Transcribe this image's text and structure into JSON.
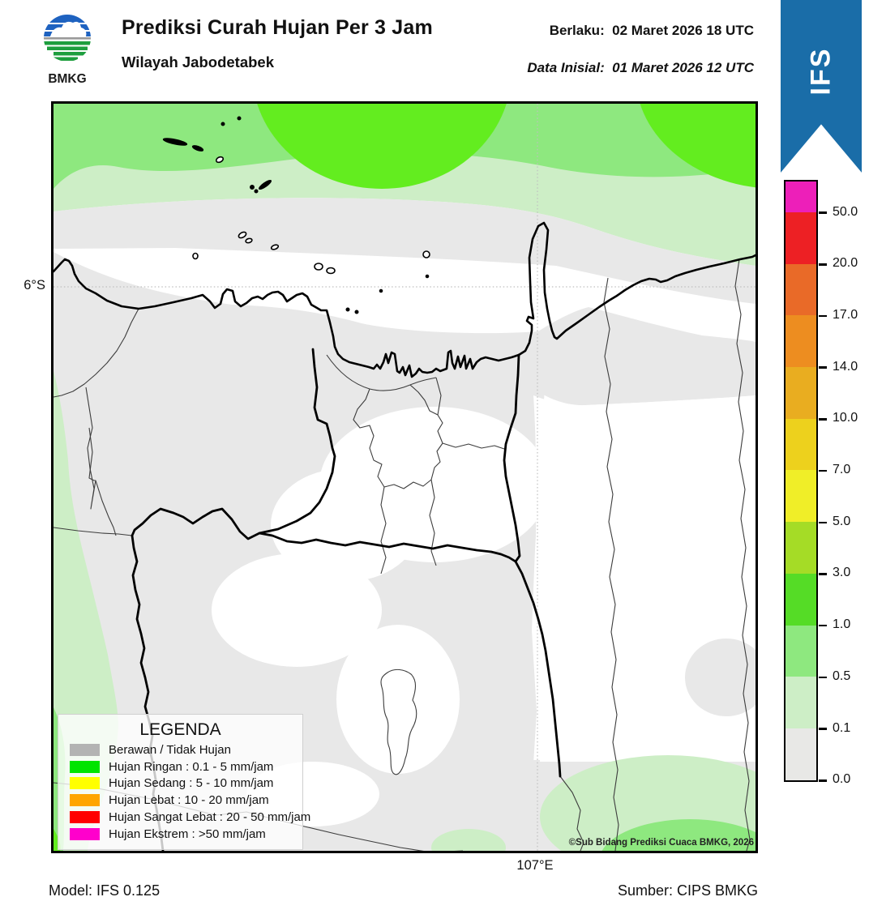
{
  "header": {
    "logo_text": "BMKG",
    "title": "Prediksi Curah Hujan Per 3 Jam",
    "subtitle": "Wilayah Jabodetabek",
    "valid_line": "Berlaku:  02 Maret 2026 18 UTC",
    "init_line": "Data Inisial:  01 Maret 2026 12 UTC"
  },
  "ribbon": {
    "label": "IFS",
    "color": "#1a6da8"
  },
  "colorbar": {
    "unit_implied": "mm/jam",
    "tick_labels": [
      "50.0",
      "20.0",
      "17.0",
      "14.0",
      "10.0",
      "7.0",
      "5.0",
      "3.0",
      "1.0",
      "0.5",
      "0.1",
      "0.0"
    ],
    "segment_colors_top_to_bottom": [
      "#ed1fb9",
      "#ed2024",
      "#e96a28",
      "#ed8d20",
      "#e9ad20",
      "#edd11d",
      "#f0ee28",
      "#a5dc26",
      "#55dc26",
      "#8ee87f",
      "#cdeec6",
      "#e8e8e6"
    ]
  },
  "map": {
    "lat_label": "6°S",
    "lon_label": "107°E",
    "copyright": "©Sub Bidang Prediksi Cuaca BMKG, 2026",
    "zone_colors": {
      "cloud_gray": "#e8e8e8",
      "rain_0_1_to_0_5": "#cdeec6",
      "rain_0_5_to_1": "#8ee87f",
      "rain_1_to_3": "#63ed1f",
      "clear_white": "#ffffff"
    }
  },
  "legend": {
    "title": "LEGENDA",
    "items": [
      {
        "label": "Berawan / Tidak Hujan",
        "color": "#b3b3b3"
      },
      {
        "label": "Hujan Ringan : 0.1 - 5 mm/jam",
        "color": "#00e400"
      },
      {
        "label": "Hujan Sedang : 5 - 10 mm/jam",
        "color": "#ffff00"
      },
      {
        "label": "Hujan Lebat : 10 - 20 mm/jam",
        "color": "#ffa500"
      },
      {
        "label": "Hujan Sangat Lebat : 20 - 50 mm/jam",
        "color": "#ff0000"
      },
      {
        "label": "Hujan Ekstrem : >50 mm/jam",
        "color": "#ff00cc"
      }
    ]
  },
  "footer": {
    "model": "Model: IFS 0.125",
    "source": "Sumber: CIPS BMKG"
  }
}
